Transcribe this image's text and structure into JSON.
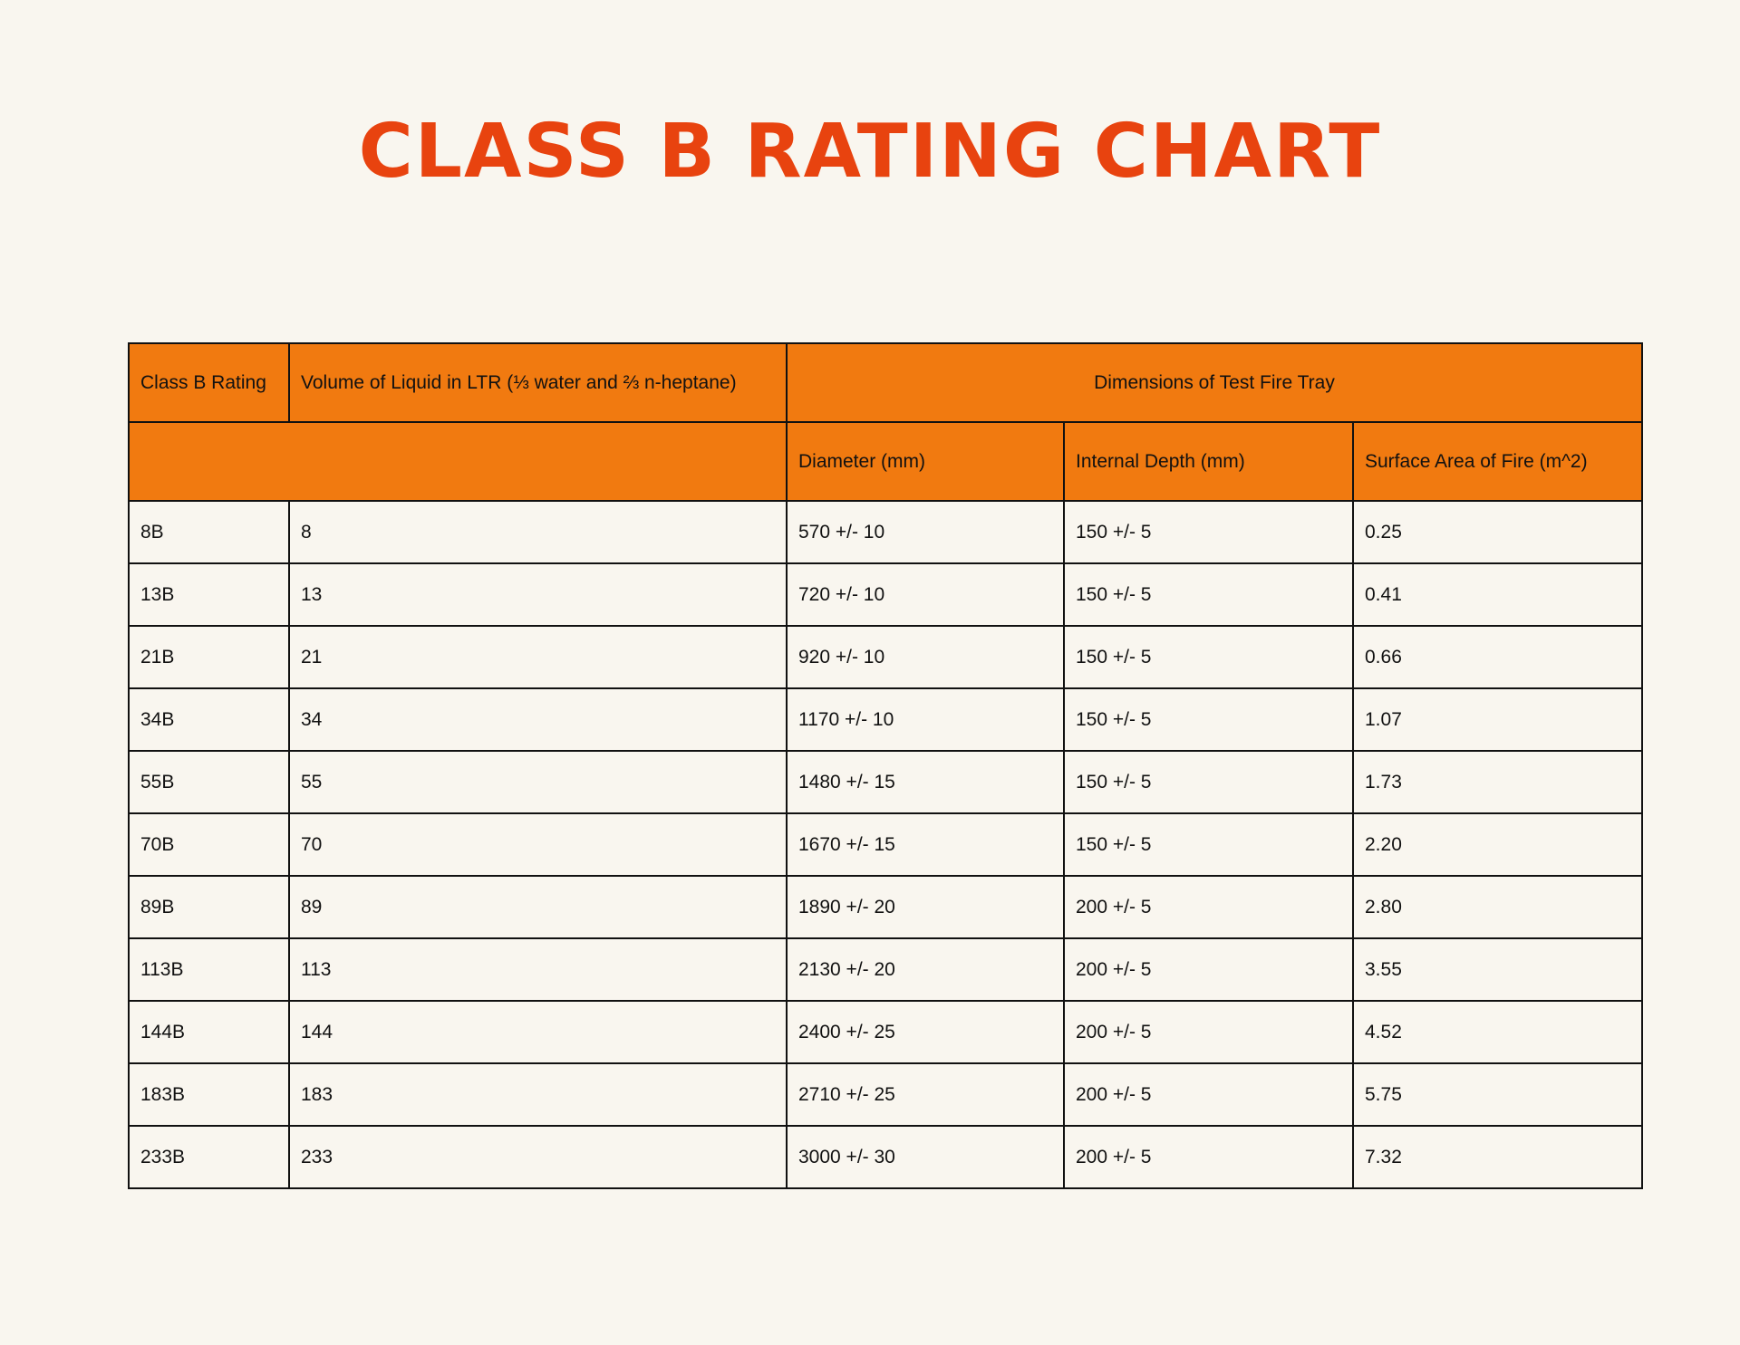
{
  "title": "CLASS B RATING CHART",
  "colors": {
    "title": "#e8430f",
    "header_bg": "#f17a10",
    "page_bg": "#f9f6ef",
    "border": "#111111"
  },
  "table": {
    "headers": {
      "rating": "Class B Rating",
      "volume": "Volume of Liquid in LTR (⅓ water and ⅔ n-heptane)",
      "dimensions": "Dimensions of Test Fire Tray",
      "diameter": "Diameter (mm)",
      "depth": "Internal Depth (mm)",
      "surface": "Surface Area of Fire (m^2)"
    },
    "rows": [
      [
        "8B",
        "8",
        "570 +/- 10",
        "150 +/- 5",
        "0.25"
      ],
      [
        "13B",
        "13",
        "720 +/- 10",
        "150 +/- 5",
        "0.41"
      ],
      [
        "21B",
        "21",
        "920 +/- 10",
        "150 +/- 5",
        "0.66"
      ],
      [
        "34B",
        "34",
        "1170 +/- 10",
        "150 +/- 5",
        "1.07"
      ],
      [
        "55B",
        "55",
        "1480 +/- 15",
        "150 +/- 5",
        "1.73"
      ],
      [
        "70B",
        "70",
        "1670 +/- 15",
        "150 +/- 5",
        "2.20"
      ],
      [
        "89B",
        "89",
        "1890 +/- 20",
        "200 +/- 5",
        "2.80"
      ],
      [
        "113B",
        "113",
        "2130 +/- 20",
        "200 +/- 5",
        "3.55"
      ],
      [
        "144B",
        "144",
        "2400 +/- 25",
        "200 +/- 5",
        "4.52"
      ],
      [
        "183B",
        "183",
        "2710 +/- 25",
        "200 +/- 5",
        "5.75"
      ],
      [
        "233B",
        "233",
        "3000 +/- 30",
        "200 +/- 5",
        "7.32"
      ]
    ]
  }
}
